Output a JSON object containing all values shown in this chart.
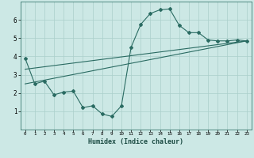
{
  "xlabel": "Humidex (Indice chaleur)",
  "bg_color": "#cce8e5",
  "line_color": "#2a6b62",
  "grid_color": "#aacfcb",
  "xlim": [
    -0.5,
    23.5
  ],
  "ylim": [
    0,
    7
  ],
  "xticks": [
    0,
    1,
    2,
    3,
    4,
    5,
    6,
    7,
    8,
    9,
    10,
    11,
    12,
    13,
    14,
    15,
    16,
    17,
    18,
    19,
    20,
    21,
    22,
    23
  ],
  "yticks": [
    1,
    2,
    3,
    4,
    5,
    6
  ],
  "series1_x": [
    0,
    1,
    2,
    3,
    4,
    5,
    6,
    7,
    8,
    9,
    10,
    11,
    12,
    13,
    14,
    15,
    16,
    17,
    18,
    19,
    20,
    21,
    22,
    23
  ],
  "series1_y": [
    3.9,
    2.5,
    2.65,
    1.9,
    2.05,
    2.1,
    1.2,
    1.3,
    0.85,
    0.72,
    1.3,
    4.5,
    5.75,
    6.35,
    6.55,
    6.6,
    5.7,
    5.3,
    5.3,
    4.9,
    4.85,
    4.85,
    4.9,
    4.85
  ],
  "series2_x": [
    0,
    23
  ],
  "series2_y": [
    2.5,
    4.85
  ],
  "series3_x": [
    0,
    23
  ],
  "series3_y": [
    3.3,
    4.85
  ],
  "markersize": 2.0,
  "linewidth": 0.8
}
